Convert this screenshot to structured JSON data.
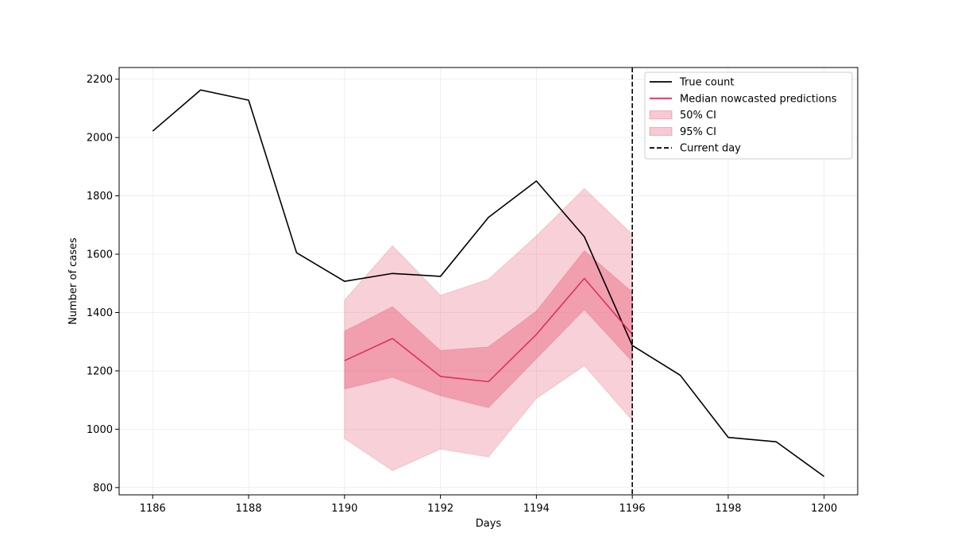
{
  "chart_data": {
    "type": "line",
    "xlabel": "Days",
    "ylabel": "Number of cases",
    "xlim": [
      1185.3,
      1200.7
    ],
    "ylim": [
      775,
      2240
    ],
    "xticks": [
      1186,
      1188,
      1190,
      1192,
      1194,
      1196,
      1198,
      1200
    ],
    "yticks": [
      800,
      1000,
      1200,
      1400,
      1600,
      1800,
      2000,
      2200
    ],
    "grid": true,
    "legend_position": "top-right",
    "current_day": 1196,
    "colors": {
      "true_count": "#000000",
      "median": "#e0305a",
      "band": "#e8637f",
      "grid": "#ebebeb"
    },
    "series": [
      {
        "name": "True count",
        "x": [
          1186,
          1187,
          1188,
          1189,
          1190,
          1191,
          1192,
          1193,
          1194,
          1195,
          1196,
          1197,
          1198,
          1199,
          1200
        ],
        "values": [
          2022,
          2163,
          2128,
          1605,
          1507,
          1534,
          1524,
          1726,
          1851,
          1660,
          1287,
          1185,
          972,
          957,
          838
        ]
      },
      {
        "name": "Median nowcasted predictions",
        "x": [
          1190,
          1191,
          1192,
          1193,
          1194,
          1195,
          1196
        ],
        "values": [
          1235,
          1311,
          1181,
          1163,
          1325,
          1517,
          1325
        ]
      }
    ],
    "bands": [
      {
        "name": "50% CI",
        "x": [
          1190,
          1191,
          1192,
          1193,
          1194,
          1195,
          1196
        ],
        "lower": [
          1138,
          1178,
          1115,
          1074,
          1242,
          1410,
          1232
        ],
        "upper": [
          1336,
          1420,
          1270,
          1282,
          1405,
          1612,
          1470
        ]
      },
      {
        "name": "95% CI",
        "x": [
          1190,
          1191,
          1192,
          1193,
          1194,
          1195,
          1196
        ],
        "lower": [
          968,
          858,
          932,
          905,
          1106,
          1218,
          1030
        ],
        "upper": [
          1443,
          1629,
          1459,
          1514,
          1663,
          1825,
          1668
        ]
      }
    ],
    "legend": [
      {
        "label": "True count",
        "kind": "line"
      },
      {
        "label": "Median nowcasted predictions",
        "kind": "line"
      },
      {
        "label": "50% CI",
        "kind": "patch"
      },
      {
        "label": "95% CI",
        "kind": "patch"
      },
      {
        "label": "Current day",
        "kind": "dashed"
      }
    ]
  }
}
